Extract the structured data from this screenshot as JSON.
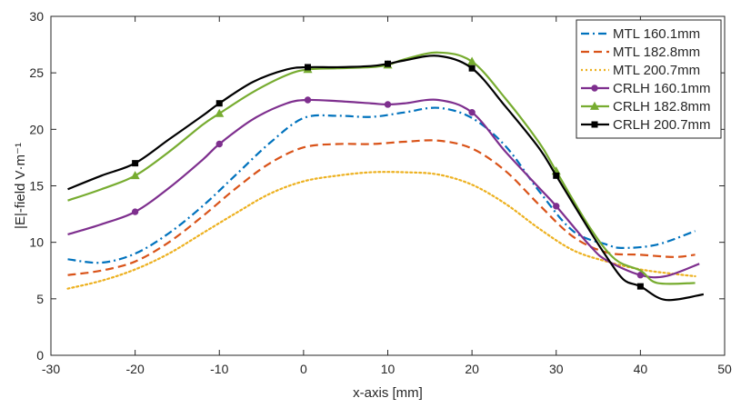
{
  "chart_data": {
    "type": "line",
    "title": "",
    "xlabel": "x-axis [mm]",
    "ylabel": "|E|-field V·m⁻¹",
    "xlim": [
      -30,
      50
    ],
    "ylim": [
      0,
      30
    ],
    "xticks": [
      -30,
      -20,
      -10,
      0,
      10,
      20,
      30,
      40,
      50
    ],
    "yticks": [
      0,
      5,
      10,
      15,
      20,
      25,
      30
    ],
    "xtick_labels": [
      "-30",
      "-20",
      "-10",
      "0",
      "10",
      "20",
      "30",
      "40",
      "50"
    ],
    "ytick_labels": [
      "0",
      "5",
      "10",
      "15",
      "20",
      "25",
      "30"
    ],
    "grid": false,
    "legend_position": "top-right",
    "series": [
      {
        "name": "MTL 160.1mm",
        "color": "#0072BD",
        "dash": "dashdot",
        "marker": "none",
        "x": [
          -28,
          -24,
          -20,
          -16,
          -12,
          -8,
          -4,
          0,
          4,
          8,
          12,
          16,
          20,
          24,
          28,
          32,
          36,
          38,
          42,
          46.5
        ],
        "y": [
          8.5,
          8.2,
          9.0,
          10.8,
          13.2,
          16.0,
          18.8,
          21.0,
          21.2,
          21.1,
          21.5,
          21.9,
          21.0,
          18.5,
          14.5,
          11.0,
          9.8,
          9.5,
          9.8,
          11.0
        ]
      },
      {
        "name": "MTL 182.8mm",
        "color": "#D95319",
        "dash": "dash",
        "marker": "none",
        "x": [
          -28,
          -24,
          -20,
          -16,
          -12,
          -8,
          -4,
          0,
          4,
          8,
          12,
          16,
          20,
          24,
          28,
          32,
          36,
          40,
          44,
          46.5
        ],
        "y": [
          7.1,
          7.5,
          8.3,
          10.0,
          12.3,
          14.8,
          17.0,
          18.4,
          18.7,
          18.7,
          18.9,
          19.0,
          18.3,
          16.3,
          13.3,
          10.5,
          9.1,
          8.9,
          8.7,
          8.9
        ]
      },
      {
        "name": "MTL 200.7mm",
        "color": "#EDB120",
        "dash": "dot",
        "marker": "none",
        "x": [
          -28,
          -24,
          -20,
          -16,
          -12,
          -8,
          -4,
          0,
          4,
          8,
          12,
          16,
          20,
          24,
          28,
          32,
          36,
          40,
          44,
          46.5
        ],
        "y": [
          5.9,
          6.6,
          7.6,
          9.0,
          10.8,
          12.6,
          14.3,
          15.4,
          15.9,
          16.2,
          16.2,
          16.0,
          15.1,
          13.4,
          11.2,
          9.3,
          8.3,
          7.6,
          7.2,
          7.0
        ]
      },
      {
        "name": "CRLH 160.1mm",
        "color": "#7E2F8E",
        "dash": "solid",
        "marker": "circle",
        "marker_x": [
          -20,
          -10,
          0.5,
          10,
          20,
          30,
          40
        ],
        "x": [
          -28,
          -24,
          -20,
          -16,
          -12,
          -10,
          -6,
          -2,
          0.5,
          4,
          8,
          10,
          12,
          16,
          20,
          24,
          28,
          30,
          34,
          36,
          40,
          43,
          47
        ],
        "y": [
          10.7,
          11.6,
          12.7,
          14.8,
          17.3,
          18.7,
          20.9,
          22.3,
          22.6,
          22.5,
          22.3,
          22.2,
          22.3,
          22.6,
          21.5,
          18.0,
          14.8,
          13.2,
          9.7,
          8.4,
          7.1,
          7.0,
          8.1
        ]
      },
      {
        "name": "CRLH 182.8mm",
        "color": "#77AC30",
        "dash": "solid",
        "marker": "triangle",
        "marker_x": [
          -20,
          -10,
          0.5,
          10,
          20,
          30
        ],
        "x": [
          -28,
          -24,
          -20,
          -16,
          -12,
          -10,
          -6,
          -2,
          0.5,
          4,
          8,
          10,
          12,
          16,
          20,
          24,
          28,
          30,
          34,
          37,
          40,
          42,
          46.5
        ],
        "y": [
          13.7,
          14.7,
          15.9,
          18.0,
          20.4,
          21.4,
          23.3,
          24.8,
          25.3,
          25.4,
          25.5,
          25.7,
          26.2,
          26.8,
          26.0,
          22.7,
          18.8,
          16.3,
          11.3,
          8.5,
          7.5,
          6.4,
          6.4
        ]
      },
      {
        "name": "CRLH 200.7mm",
        "color": "#000000",
        "dash": "solid",
        "marker": "square",
        "marker_x": [
          -20,
          -10,
          0.5,
          10,
          20,
          30,
          40
        ],
        "x": [
          -28,
          -24,
          -20,
          -16,
          -12,
          -10,
          -6,
          -2,
          0.5,
          4,
          8,
          10,
          12,
          16,
          20,
          24,
          28,
          30,
          34,
          36,
          38,
          40,
          43,
          47.5
        ],
        "y": [
          14.7,
          15.9,
          17.0,
          19.1,
          21.2,
          22.3,
          24.2,
          25.3,
          25.5,
          25.5,
          25.6,
          25.8,
          26.1,
          26.5,
          25.4,
          22.0,
          18.3,
          15.9,
          11.0,
          8.7,
          6.7,
          6.1,
          4.9,
          5.4
        ]
      }
    ]
  }
}
